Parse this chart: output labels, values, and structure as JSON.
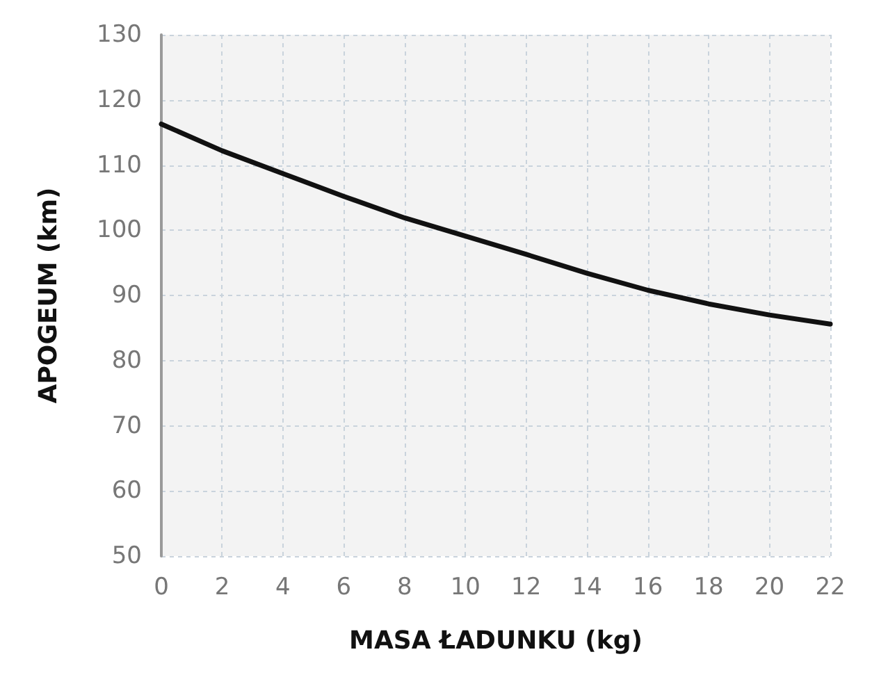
{
  "chart_data": {
    "type": "line",
    "xlabel": "MASA ŁADUNKU (kg)",
    "ylabel": "APOGEUM (km)",
    "x": [
      0,
      2,
      4,
      6,
      8,
      10,
      12,
      14,
      16,
      18,
      20,
      22
    ],
    "series": [
      {
        "color": "#111111",
        "values": [
          116.3,
          112.2,
          108.7,
          105.2,
          101.9,
          99.1,
          96.3,
          93.4,
          90.8,
          88.7,
          87.0,
          85.6
        ]
      }
    ],
    "xlim": [
      0,
      22
    ],
    "xticks": [
      0,
      2,
      4,
      6,
      8,
      10,
      12,
      14,
      16,
      18,
      20,
      22
    ],
    "ylim": [
      50,
      130
    ],
    "yticks": [
      50,
      60,
      70,
      80,
      90,
      100,
      110,
      120,
      130
    ],
    "grid": true,
    "marker": "none",
    "line_style": "solid"
  }
}
